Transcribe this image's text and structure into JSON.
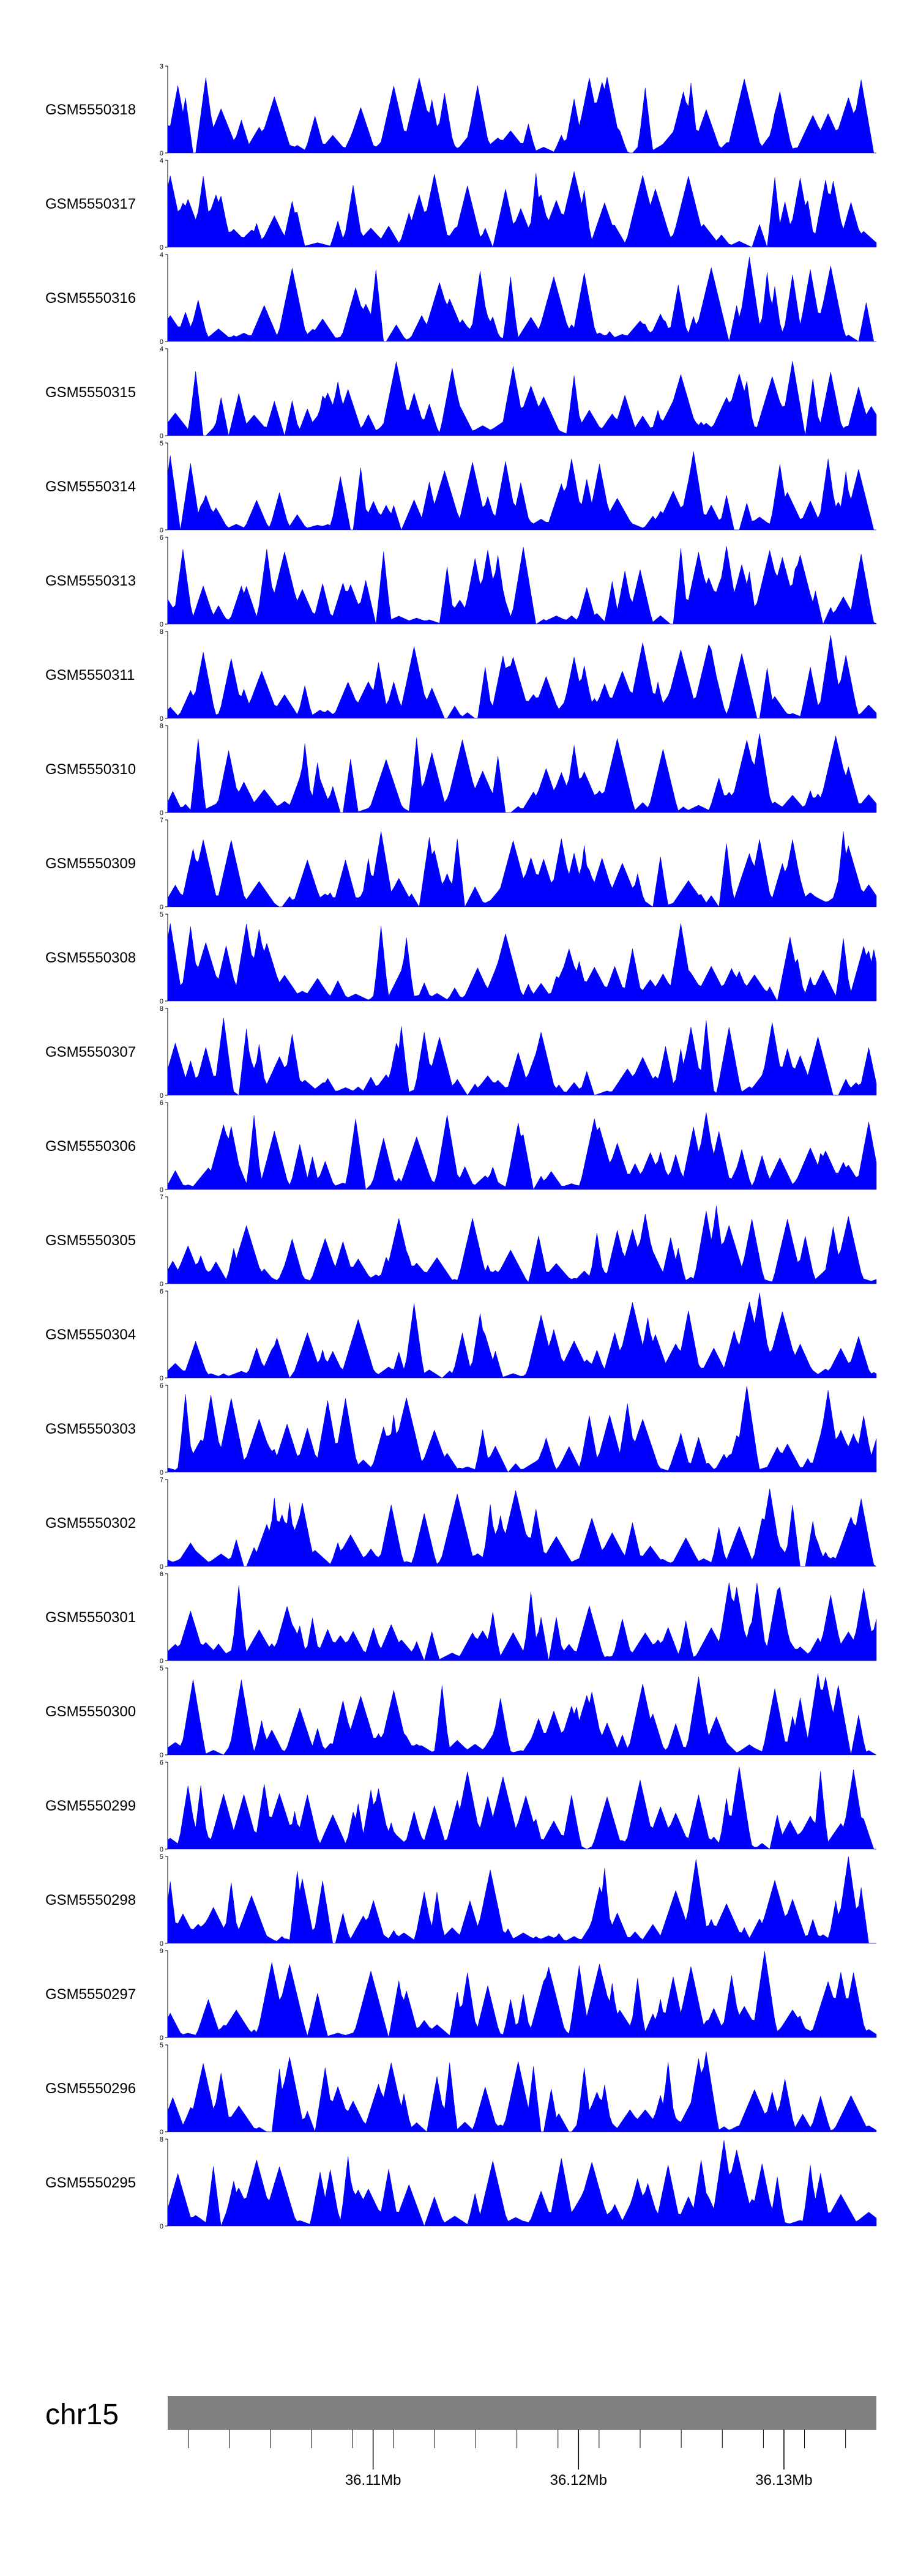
{
  "chart_data": {
    "type": "area",
    "color": "#0000ff",
    "chromosome": {
      "label": "chr15",
      "bar_color": "#808080",
      "range_mb": [
        36.1,
        36.1345
      ],
      "major_ticks": [
        {
          "value": 36.11,
          "label": "36.11Mb"
        },
        {
          "value": 36.12,
          "label": "36.12Mb"
        },
        {
          "value": 36.13,
          "label": "36.13Mb"
        }
      ],
      "minor_ticks": [
        36.101,
        36.103,
        36.105,
        36.107,
        36.109,
        36.111,
        36.113,
        36.115,
        36.117,
        36.119,
        36.121,
        36.123,
        36.125,
        36.127,
        36.129,
        36.131,
        36.133
      ]
    },
    "series": [
      {
        "name": "GSM5550318",
        "ymax": 3,
        "ymax_label": "3",
        "zero_label": "0",
        "seed": 318
      },
      {
        "name": "GSM5550317",
        "ymax": 4,
        "ymax_label": "4",
        "zero_label": "0",
        "seed": 317
      },
      {
        "name": "GSM5550316",
        "ymax": 4,
        "ymax_label": "4",
        "zero_label": "0",
        "seed": 316
      },
      {
        "name": "GSM5550315",
        "ymax": 4,
        "ymax_label": "4",
        "zero_label": "0",
        "seed": 315
      },
      {
        "name": "GSM5550314",
        "ymax": 5,
        "ymax_label": "5",
        "zero_label": "0",
        "seed": 314
      },
      {
        "name": "GSM5550313",
        "ymax": 6,
        "ymax_label": "6",
        "zero_label": "0",
        "seed": 313
      },
      {
        "name": "GSM5550311",
        "ymax": 8,
        "ymax_label": "8",
        "zero_label": "0",
        "seed": 311
      },
      {
        "name": "GSM5550310",
        "ymax": 8,
        "ymax_label": "8",
        "zero_label": "0",
        "seed": 310
      },
      {
        "name": "GSM5550309",
        "ymax": 7,
        "ymax_label": "7",
        "zero_label": "0",
        "seed": 309
      },
      {
        "name": "GSM5550308",
        "ymax": 5,
        "ymax_label": "5",
        "zero_label": "0",
        "seed": 308
      },
      {
        "name": "GSM5550307",
        "ymax": 8,
        "ymax_label": "8",
        "zero_label": "0",
        "seed": 307
      },
      {
        "name": "GSM5550306",
        "ymax": 6,
        "ymax_label": "6",
        "zero_label": "0",
        "seed": 306
      },
      {
        "name": "GSM5550305",
        "ymax": 7,
        "ymax_label": "7",
        "zero_label": "0",
        "seed": 305
      },
      {
        "name": "GSM5550304",
        "ymax": 6,
        "ymax_label": "6",
        "zero_label": "0",
        "seed": 304
      },
      {
        "name": "GSM5550303",
        "ymax": 6,
        "ymax_label": "6",
        "zero_label": "0",
        "seed": 303
      },
      {
        "name": "GSM5550302",
        "ymax": 7,
        "ymax_label": "7",
        "zero_label": "0",
        "seed": 302
      },
      {
        "name": "GSM5550301",
        "ymax": 6,
        "ymax_label": "6",
        "zero_label": "0",
        "seed": 301
      },
      {
        "name": "GSM5550300",
        "ymax": 5,
        "ymax_label": "5",
        "zero_label": "0",
        "seed": 300
      },
      {
        "name": "GSM5550299",
        "ymax": 6,
        "ymax_label": "6",
        "zero_label": "0",
        "seed": 299
      },
      {
        "name": "GSM5550298",
        "ymax": 5,
        "ymax_label": "5",
        "zero_label": "0",
        "seed": 298
      },
      {
        "name": "GSM5550297",
        "ymax": 9,
        "ymax_label": "9",
        "zero_label": "0",
        "seed": 297
      },
      {
        "name": "GSM5550296",
        "ymax": 5,
        "ymax_label": "5",
        "zero_label": "0",
        "seed": 296
      },
      {
        "name": "GSM5550295",
        "ymax": 8,
        "ymax_label": "8",
        "zero_label": "0",
        "seed": 295
      }
    ]
  }
}
